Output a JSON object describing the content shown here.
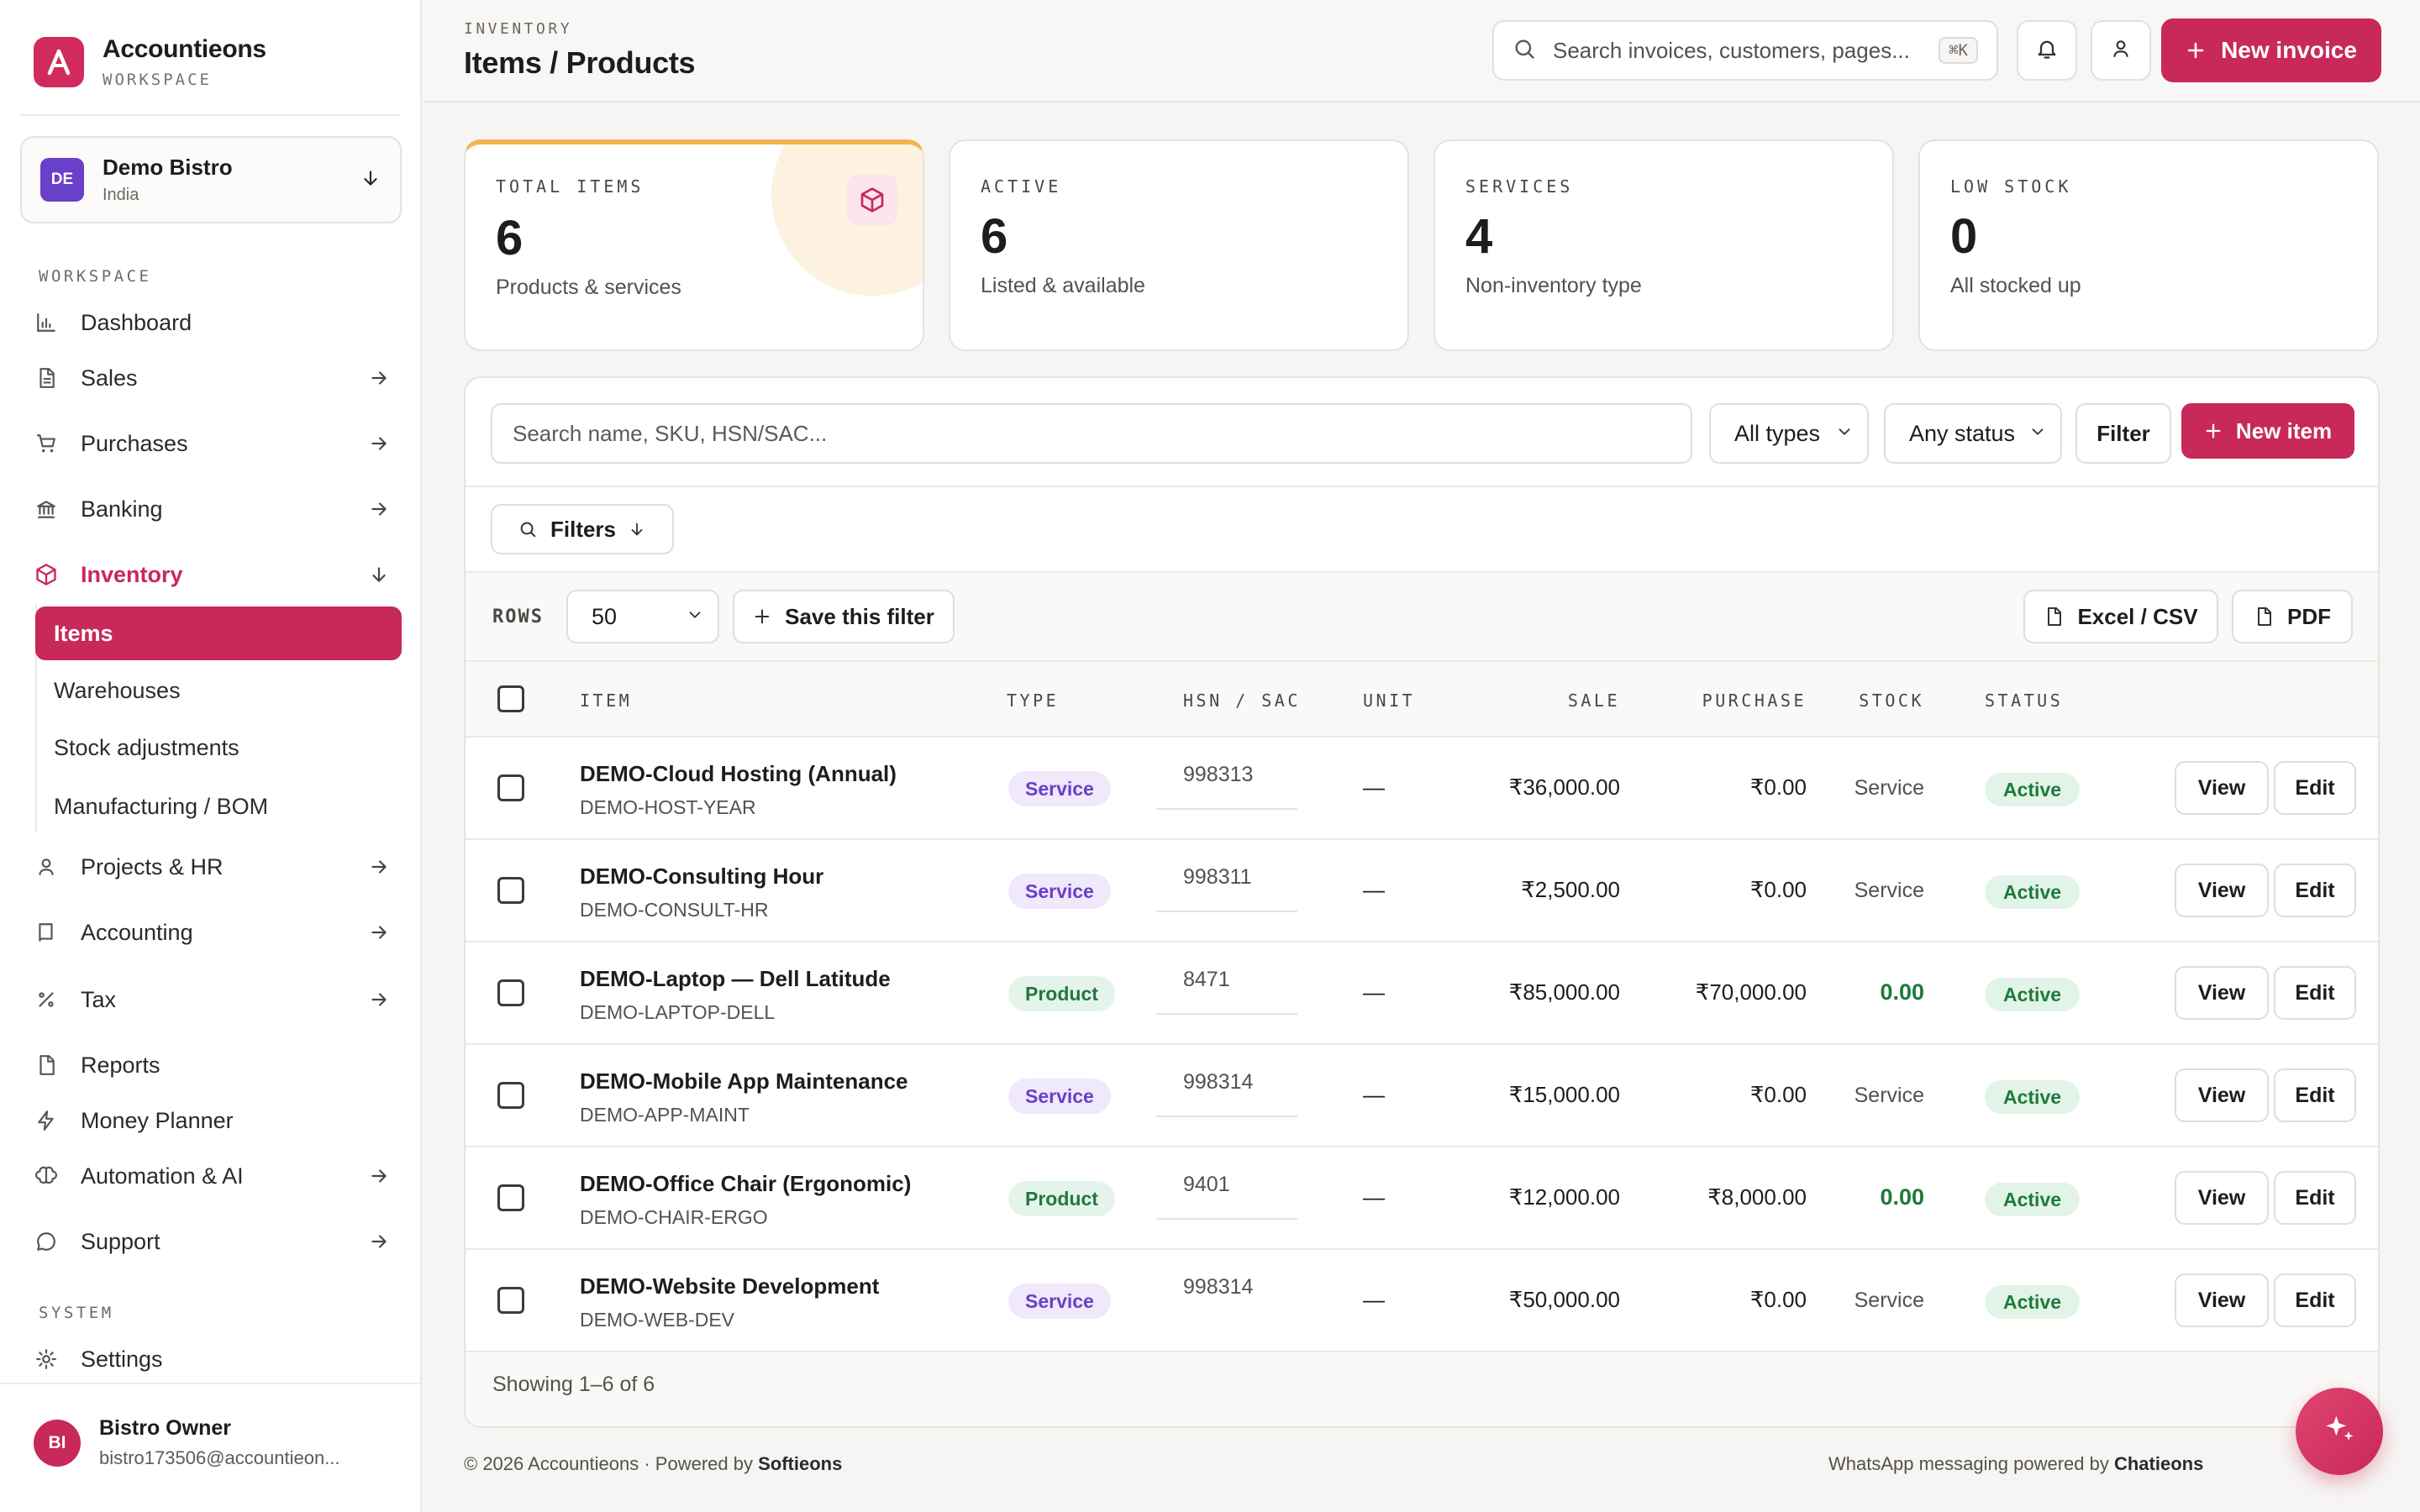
{
  "brand": {
    "name": "Accountieons",
    "sub": "WORKSPACE",
    "accent": "#c8285a"
  },
  "org": {
    "initials": "DE",
    "name": "Demo Bistro",
    "country": "India"
  },
  "sidebar": {
    "section_workspace": "WORKSPACE",
    "section_system": "SYSTEM",
    "items": [
      {
        "label": "Dashboard"
      },
      {
        "label": "Sales"
      },
      {
        "label": "Purchases"
      },
      {
        "label": "Banking"
      },
      {
        "label": "Inventory"
      },
      {
        "label": "Projects & HR"
      },
      {
        "label": "Accounting"
      },
      {
        "label": "Tax"
      },
      {
        "label": "Reports"
      },
      {
        "label": "Money Planner"
      },
      {
        "label": "Automation & AI"
      },
      {
        "label": "Support"
      },
      {
        "label": "Settings"
      }
    ],
    "inventory_sub": [
      "Items",
      "Warehouses",
      "Stock adjustments",
      "Manufacturing / BOM"
    ]
  },
  "user": {
    "initials": "BI",
    "name": "Bistro Owner",
    "email": "bistro173506@accountieon..."
  },
  "header": {
    "section": "INVENTORY",
    "title": "Items / Products",
    "search_placeholder": "Search invoices, customers, pages...",
    "shortcut": "⌘K",
    "new_invoice": "New invoice"
  },
  "stats": [
    {
      "key": "TOTAL ITEMS",
      "value": "6",
      "desc": "Products & services"
    },
    {
      "key": "ACTIVE",
      "value": "6",
      "desc": "Listed & available"
    },
    {
      "key": "SERVICES",
      "value": "4",
      "desc": "Non-inventory type"
    },
    {
      "key": "LOW STOCK",
      "value": "0",
      "desc": "All stocked up"
    }
  ],
  "toolbar": {
    "search_placeholder": "Search name, SKU, HSN/SAC...",
    "type_filter": "All types",
    "status_filter": "Any status",
    "filter": "Filter",
    "new_item": "New item",
    "filters": "Filters",
    "rows_label": "ROWS",
    "rows_value": "50",
    "save_filter": "Save this filter",
    "excel": "Excel / CSV",
    "pdf": "PDF"
  },
  "table": {
    "headers": [
      "ITEM",
      "TYPE",
      "HSN / SAC",
      "UNIT",
      "SALE",
      "PURCHASE",
      "STOCK",
      "STATUS"
    ],
    "view_label": "View",
    "edit_label": "Edit",
    "rows": [
      {
        "name": "DEMO-Cloud Hosting (Annual)",
        "sku": "DEMO-HOST-YEAR",
        "type": "Service",
        "hsn": "998313",
        "unit": "—",
        "sale": "₹36,000.00",
        "purchase": "₹0.00",
        "stock": "Service",
        "status": "Active"
      },
      {
        "name": "DEMO-Consulting Hour",
        "sku": "DEMO-CONSULT-HR",
        "type": "Service",
        "hsn": "998311",
        "unit": "—",
        "sale": "₹2,500.00",
        "purchase": "₹0.00",
        "stock": "Service",
        "status": "Active"
      },
      {
        "name": "DEMO-Laptop — Dell Latitude",
        "sku": "DEMO-LAPTOP-DELL",
        "type": "Product",
        "hsn": "8471",
        "unit": "—",
        "sale": "₹85,000.00",
        "purchase": "₹70,000.00",
        "stock": "0.00",
        "status": "Active"
      },
      {
        "name": "DEMO-Mobile App Maintenance",
        "sku": "DEMO-APP-MAINT",
        "type": "Service",
        "hsn": "998314",
        "unit": "—",
        "sale": "₹15,000.00",
        "purchase": "₹0.00",
        "stock": "Service",
        "status": "Active"
      },
      {
        "name": "DEMO-Office Chair (Ergonomic)",
        "sku": "DEMO-CHAIR-ERGO",
        "type": "Product",
        "hsn": "9401",
        "unit": "—",
        "sale": "₹12,000.00",
        "purchase": "₹8,000.00",
        "stock": "0.00",
        "status": "Active"
      },
      {
        "name": "DEMO-Website Development",
        "sku": "DEMO-WEB-DEV",
        "type": "Service",
        "hsn": "998314",
        "unit": "—",
        "sale": "₹50,000.00",
        "purchase": "₹0.00",
        "stock": "Service",
        "status": "Active"
      }
    ],
    "showing": "Showing 1–6 of 6"
  },
  "footer": {
    "copyright": "© 2026 Accountieons · Powered by ",
    "powered_by": "Softieons",
    "whatsapp": "WhatsApp messaging powered by ",
    "whatsapp_by": "Chatieons"
  }
}
